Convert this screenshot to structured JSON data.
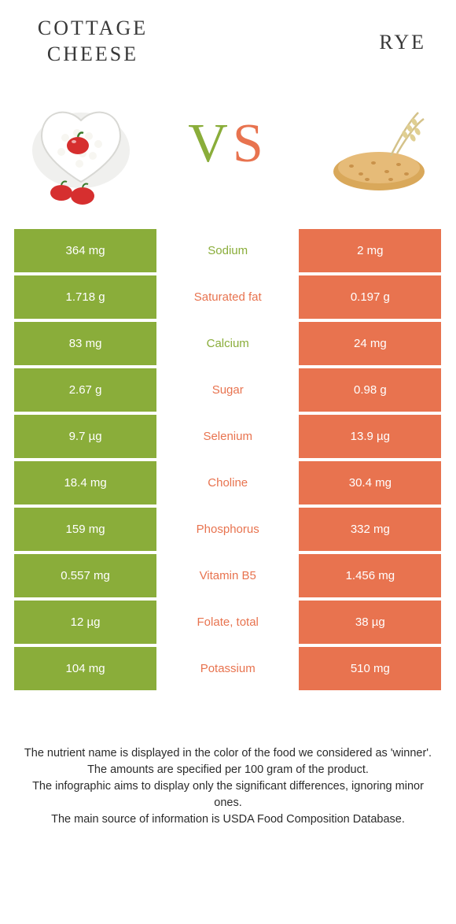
{
  "colors": {
    "left": "#8aad3a",
    "right": "#e8734f",
    "row_gap": "#ffffff",
    "text_on_fill": "#ffffff"
  },
  "header": {
    "left_title": "Cottage cheese",
    "right_title": "Rye",
    "vs_v": "V",
    "vs_s": "S"
  },
  "rows": [
    {
      "left": "364 mg",
      "label": "Sodium",
      "right": "2 mg",
      "winner": "left"
    },
    {
      "left": "1.718 g",
      "label": "Saturated fat",
      "right": "0.197 g",
      "winner": "right"
    },
    {
      "left": "83 mg",
      "label": "Calcium",
      "right": "24 mg",
      "winner": "left"
    },
    {
      "left": "2.67 g",
      "label": "Sugar",
      "right": "0.98 g",
      "winner": "right"
    },
    {
      "left": "9.7 µg",
      "label": "Selenium",
      "right": "13.9 µg",
      "winner": "right"
    },
    {
      "left": "18.4 mg",
      "label": "Choline",
      "right": "30.4 mg",
      "winner": "right"
    },
    {
      "left": "159 mg",
      "label": "Phosphorus",
      "right": "332 mg",
      "winner": "right"
    },
    {
      "left": "0.557 mg",
      "label": "Vitamin B5",
      "right": "1.456 mg",
      "winner": "right"
    },
    {
      "left": "12 µg",
      "label": "Folate, total",
      "right": "38 µg",
      "winner": "right"
    },
    {
      "left": "104 mg",
      "label": "Potassium",
      "right": "510 mg",
      "winner": "right"
    }
  ],
  "footer": {
    "line1": "The nutrient name is displayed in the color of the food we considered as 'winner'.",
    "line2": "The amounts are specified per 100 gram of the product.",
    "line3": "The infographic aims to display only the significant differences, ignoring minor ones.",
    "line4": "The main source of information is USDA Food Composition Database."
  }
}
